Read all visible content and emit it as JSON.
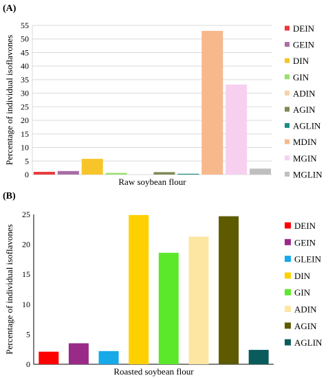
{
  "chart_data": [
    {
      "panel_label": "(A)",
      "type": "bar",
      "categories": [
        "DEIN",
        "GEIN",
        "DIN",
        "GIN",
        "ADIN",
        "AGIN",
        "AGLIN",
        "MDIN",
        "MGIN",
        "MGLIN"
      ],
      "values": [
        1.0,
        1.3,
        5.8,
        0.6,
        0.0,
        0.9,
        0.3,
        53.0,
        33.2,
        2.2
      ],
      "colors": [
        "#e8393b",
        "#a86ea6",
        "#f7c52a",
        "#97e06b",
        "#f6d3a3",
        "#7d8a55",
        "#1d8d83",
        "#f7b98c",
        "#f7d0f0",
        "#bfbfbf"
      ],
      "xlabel": "Raw soybean flour",
      "ylabel": "Percentage of individual isoflavones",
      "ylim": [
        0,
        55
      ],
      "yticks": [
        0,
        5,
        10,
        15,
        20,
        25,
        30,
        35,
        40,
        45,
        50,
        55
      ],
      "grid": true,
      "legend": "right"
    },
    {
      "panel_label": "(B)",
      "type": "bar",
      "categories": [
        "DEIN",
        "GEIN",
        "GLEIN",
        "DIN",
        "GIN",
        "ADIN",
        "AGIN",
        "AGLIN"
      ],
      "values": [
        2.1,
        3.5,
        2.2,
        24.9,
        18.6,
        21.3,
        24.7,
        2.4
      ],
      "colors": [
        "#ff0000",
        "#9a2a88",
        "#17a9e8",
        "#ffd000",
        "#5ce82a",
        "#fde6a2",
        "#5e5a00",
        "#0a5c5c"
      ],
      "xlabel": "Roasted soybean flour",
      "ylabel": "Percentage of individual isoflavones",
      "ylim": [
        0,
        25
      ],
      "yticks": [
        0,
        5,
        10,
        15,
        20,
        25
      ],
      "grid": false,
      "legend": "right"
    }
  ]
}
